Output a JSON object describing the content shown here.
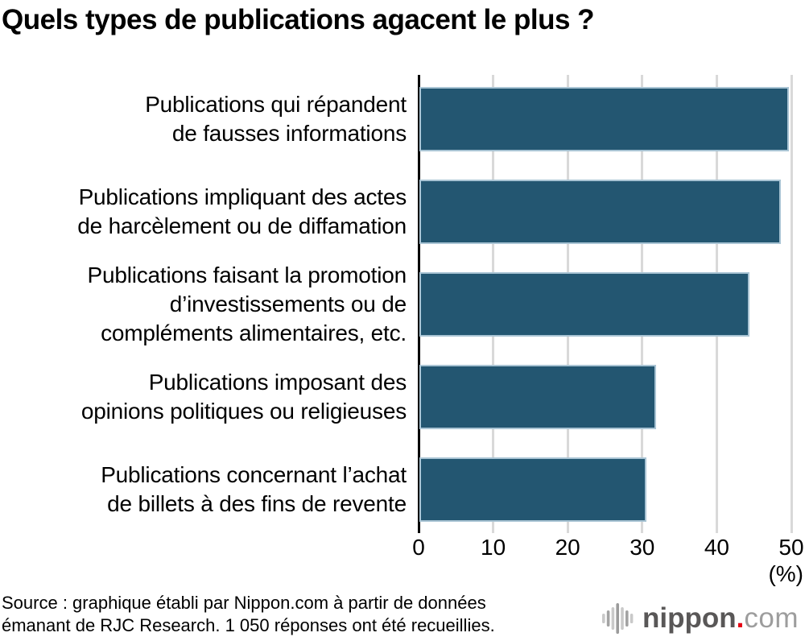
{
  "title": "Quels types de publications agacent le plus ?",
  "chart_data": {
    "type": "bar",
    "orientation": "horizontal",
    "title": "Quels types de publications agacent le plus ?",
    "categories": [
      "Publications qui répandent\nde fausses informations",
      "Publications impliquant des actes\nde harcèlement ou de diffamation",
      "Publications faisant la promotion\nd’investissements ou de\ncompléments alimentaires, etc.",
      "Publications imposant des\nopinions politiques ou religieuses",
      "Publications concernant l’achat\nde billets à des fins de revente"
    ],
    "values": [
      49.6,
      48.5,
      44.3,
      31.7,
      30.4
    ],
    "xlabel": "(%)",
    "ylabel": "",
    "xlim": [
      0,
      50
    ],
    "xticks": [
      0,
      10,
      20,
      30,
      40,
      50
    ],
    "grid": true,
    "legend": false,
    "bar_color": "#235671",
    "bar_border_color": "#a9c4d4",
    "grid_color": "#d9d9d9",
    "axis_color": "#000000"
  },
  "source": {
    "text": "Source : graphique établi par Nippon.com à partir de données\némanant de RJC Research. 1 050 réponses ont été recueillies."
  },
  "logo": {
    "icon": "soundwave-icon",
    "brand": "nippon",
    "dot": ".",
    "suffix": "com",
    "brand_color": "#595757",
    "dot_color": "#e60012",
    "suffix_color": "#9d9d9d",
    "icon_bar_colors": [
      "#c9c9c9",
      "#a3a3a3",
      "#c9c9c9",
      "#9b9b9b",
      "#c9c9c9",
      "#a3a3a3",
      "#c9c9c9"
    ]
  }
}
